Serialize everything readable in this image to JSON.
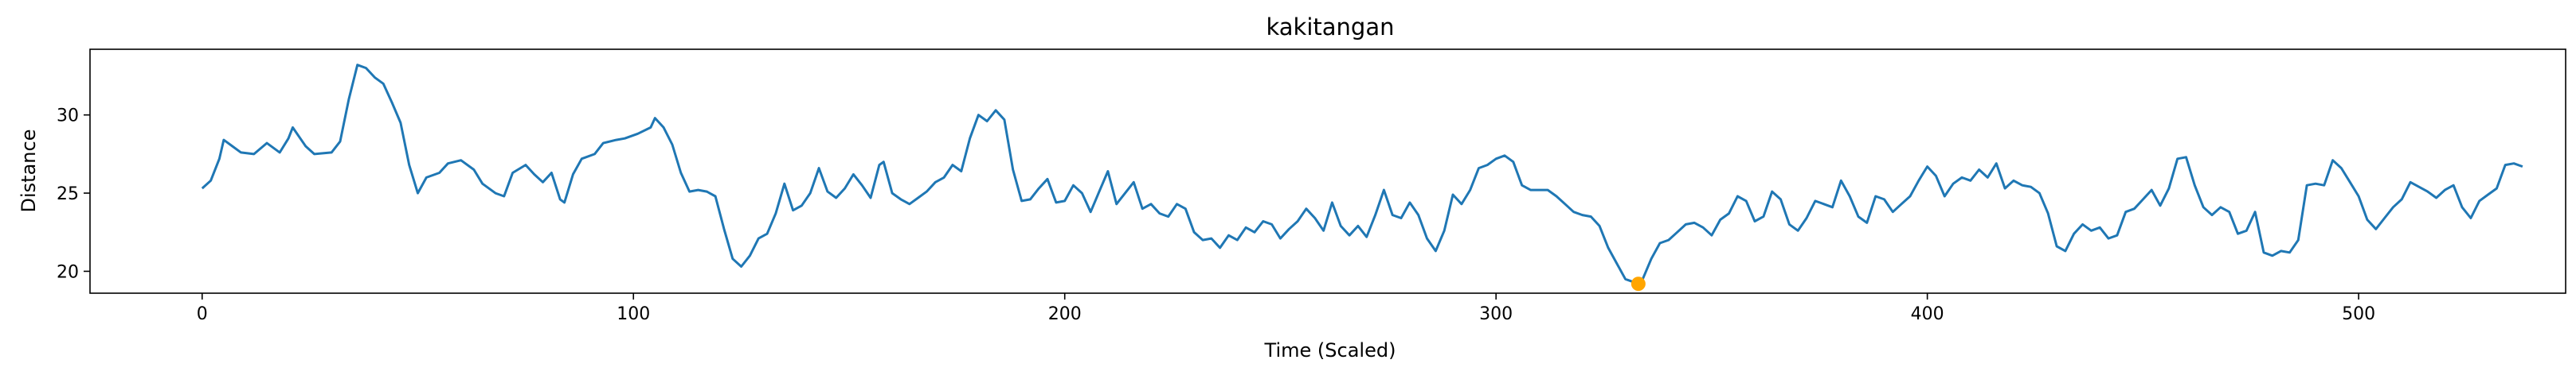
{
  "chart_data": {
    "type": "line",
    "title": "kakitangan",
    "xlabel": "Time (Scaled)",
    "ylabel": "Distance",
    "xlim": [
      -26,
      548
    ],
    "ylim": [
      18.6,
      34.2
    ],
    "xticks": [
      0,
      100,
      200,
      300,
      400,
      500
    ],
    "yticks": [
      20,
      25,
      30
    ],
    "grid": false,
    "colors": {
      "line": "#1f77b4",
      "marker": "#ffa500"
    },
    "series": [
      {
        "points": [
          [
            0,
            25.3
          ],
          [
            2,
            25.8
          ],
          [
            4,
            27.2
          ],
          [
            5,
            28.4
          ],
          [
            7,
            28.0
          ],
          [
            9,
            27.6
          ],
          [
            12,
            27.5
          ],
          [
            15,
            28.2
          ],
          [
            18,
            27.6
          ],
          [
            20,
            28.5
          ],
          [
            21,
            29.2
          ],
          [
            24,
            28.0
          ],
          [
            26,
            27.5
          ],
          [
            30,
            27.6
          ],
          [
            32,
            28.3
          ],
          [
            34,
            31.0
          ],
          [
            36,
            33.2
          ],
          [
            38,
            33.0
          ],
          [
            40,
            32.4
          ],
          [
            42,
            32.0
          ],
          [
            44,
            30.8
          ],
          [
            46,
            29.5
          ],
          [
            48,
            26.8
          ],
          [
            50,
            25.0
          ],
          [
            52,
            26.0
          ],
          [
            55,
            26.3
          ],
          [
            57,
            26.9
          ],
          [
            60,
            27.1
          ],
          [
            63,
            26.5
          ],
          [
            65,
            25.6
          ],
          [
            68,
            25.0
          ],
          [
            70,
            24.8
          ],
          [
            72,
            26.3
          ],
          [
            75,
            26.8
          ],
          [
            77,
            26.2
          ],
          [
            79,
            25.7
          ],
          [
            81,
            26.3
          ],
          [
            83,
            24.6
          ],
          [
            84,
            24.4
          ],
          [
            86,
            26.2
          ],
          [
            88,
            27.2
          ],
          [
            91,
            27.5
          ],
          [
            93,
            28.2
          ],
          [
            96,
            28.4
          ],
          [
            98,
            28.5
          ],
          [
            101,
            28.8
          ],
          [
            104,
            29.2
          ],
          [
            105,
            29.8
          ],
          [
            107,
            29.2
          ],
          [
            109,
            28.1
          ],
          [
            111,
            26.3
          ],
          [
            113,
            25.1
          ],
          [
            115,
            25.2
          ],
          [
            117,
            25.1
          ],
          [
            119,
            24.8
          ],
          [
            121,
            22.7
          ],
          [
            123,
            20.8
          ],
          [
            125,
            20.3
          ],
          [
            127,
            21.0
          ],
          [
            129,
            22.1
          ],
          [
            131,
            22.4
          ],
          [
            133,
            23.7
          ],
          [
            135,
            25.6
          ],
          [
            137,
            23.9
          ],
          [
            139,
            24.2
          ],
          [
            141,
            25.0
          ],
          [
            143,
            26.6
          ],
          [
            145,
            25.1
          ],
          [
            147,
            24.7
          ],
          [
            149,
            25.3
          ],
          [
            151,
            26.2
          ],
          [
            153,
            25.5
          ],
          [
            155,
            24.7
          ],
          [
            157,
            26.8
          ],
          [
            158,
            27.0
          ],
          [
            160,
            25.0
          ],
          [
            162,
            24.6
          ],
          [
            164,
            24.3
          ],
          [
            166,
            24.7
          ],
          [
            168,
            25.1
          ],
          [
            170,
            25.7
          ],
          [
            172,
            26.0
          ],
          [
            174,
            26.8
          ],
          [
            176,
            26.4
          ],
          [
            178,
            28.5
          ],
          [
            180,
            30.0
          ],
          [
            182,
            29.6
          ],
          [
            184,
            30.3
          ],
          [
            186,
            29.7
          ],
          [
            188,
            26.5
          ],
          [
            190,
            24.5
          ],
          [
            192,
            24.6
          ],
          [
            194,
            25.3
          ],
          [
            196,
            25.9
          ],
          [
            198,
            24.4
          ],
          [
            200,
            24.5
          ],
          [
            202,
            25.5
          ],
          [
            204,
            25.0
          ],
          [
            206,
            23.8
          ],
          [
            208,
            25.1
          ],
          [
            210,
            26.4
          ],
          [
            212,
            24.3
          ],
          [
            214,
            25.0
          ],
          [
            216,
            25.7
          ],
          [
            218,
            24.0
          ],
          [
            220,
            24.3
          ],
          [
            222,
            23.7
          ],
          [
            224,
            23.5
          ],
          [
            226,
            24.3
          ],
          [
            228,
            24.0
          ],
          [
            230,
            22.5
          ],
          [
            232,
            22.0
          ],
          [
            234,
            22.1
          ],
          [
            236,
            21.5
          ],
          [
            238,
            22.3
          ],
          [
            240,
            22.0
          ],
          [
            242,
            22.8
          ],
          [
            244,
            22.5
          ],
          [
            246,
            23.2
          ],
          [
            248,
            23.0
          ],
          [
            250,
            22.1
          ],
          [
            252,
            22.7
          ],
          [
            254,
            23.2
          ],
          [
            256,
            24.0
          ],
          [
            258,
            23.4
          ],
          [
            260,
            22.6
          ],
          [
            262,
            24.4
          ],
          [
            264,
            22.9
          ],
          [
            266,
            22.3
          ],
          [
            268,
            22.9
          ],
          [
            270,
            22.2
          ],
          [
            272,
            23.6
          ],
          [
            274,
            25.2
          ],
          [
            276,
            23.6
          ],
          [
            278,
            23.4
          ],
          [
            280,
            24.4
          ],
          [
            282,
            23.6
          ],
          [
            284,
            22.1
          ],
          [
            286,
            21.3
          ],
          [
            288,
            22.6
          ],
          [
            290,
            24.9
          ],
          [
            292,
            24.3
          ],
          [
            294,
            25.2
          ],
          [
            296,
            26.6
          ],
          [
            298,
            26.8
          ],
          [
            300,
            27.2
          ],
          [
            302,
            27.4
          ],
          [
            304,
            27.0
          ],
          [
            306,
            25.5
          ],
          [
            308,
            25.2
          ],
          [
            310,
            25.2
          ],
          [
            312,
            25.2
          ],
          [
            314,
            24.8
          ],
          [
            316,
            24.3
          ],
          [
            318,
            23.8
          ],
          [
            320,
            23.6
          ],
          [
            322,
            23.5
          ],
          [
            324,
            22.9
          ],
          [
            326,
            21.5
          ],
          [
            328,
            20.5
          ],
          [
            330,
            19.5
          ],
          [
            332,
            19.3
          ],
          [
            334,
            19.5
          ],
          [
            336,
            20.8
          ],
          [
            338,
            21.8
          ],
          [
            340,
            22.0
          ],
          [
            342,
            22.5
          ],
          [
            344,
            23.0
          ],
          [
            346,
            23.1
          ],
          [
            348,
            22.8
          ],
          [
            350,
            22.3
          ],
          [
            352,
            23.3
          ],
          [
            354,
            23.7
          ],
          [
            356,
            24.8
          ],
          [
            358,
            24.5
          ],
          [
            360,
            23.2
          ],
          [
            362,
            23.5
          ],
          [
            364,
            25.1
          ],
          [
            366,
            24.6
          ],
          [
            368,
            23.0
          ],
          [
            370,
            22.6
          ],
          [
            372,
            23.4
          ],
          [
            374,
            24.5
          ],
          [
            376,
            24.3
          ],
          [
            378,
            24.1
          ],
          [
            380,
            25.8
          ],
          [
            382,
            24.8
          ],
          [
            384,
            23.5
          ],
          [
            386,
            23.1
          ],
          [
            388,
            24.8
          ],
          [
            390,
            24.6
          ],
          [
            392,
            23.8
          ],
          [
            394,
            24.3
          ],
          [
            396,
            24.8
          ],
          [
            398,
            25.8
          ],
          [
            400,
            26.7
          ],
          [
            402,
            26.1
          ],
          [
            404,
            24.8
          ],
          [
            406,
            25.6
          ],
          [
            408,
            26.0
          ],
          [
            410,
            25.8
          ],
          [
            412,
            26.5
          ],
          [
            414,
            26.0
          ],
          [
            416,
            26.9
          ],
          [
            418,
            25.3
          ],
          [
            420,
            25.8
          ],
          [
            422,
            25.5
          ],
          [
            424,
            25.4
          ],
          [
            426,
            25.0
          ],
          [
            428,
            23.7
          ],
          [
            430,
            21.6
          ],
          [
            432,
            21.3
          ],
          [
            434,
            22.4
          ],
          [
            436,
            23.0
          ],
          [
            438,
            22.6
          ],
          [
            440,
            22.8
          ],
          [
            442,
            22.1
          ],
          [
            444,
            22.3
          ],
          [
            446,
            23.8
          ],
          [
            448,
            24.0
          ],
          [
            450,
            24.6
          ],
          [
            452,
            25.2
          ],
          [
            454,
            24.2
          ],
          [
            456,
            25.3
          ],
          [
            458,
            27.2
          ],
          [
            460,
            27.3
          ],
          [
            462,
            25.5
          ],
          [
            464,
            24.1
          ],
          [
            466,
            23.6
          ],
          [
            468,
            24.1
          ],
          [
            470,
            23.8
          ],
          [
            472,
            22.4
          ],
          [
            474,
            22.6
          ],
          [
            476,
            23.8
          ],
          [
            478,
            21.2
          ],
          [
            480,
            21.0
          ],
          [
            482,
            21.3
          ],
          [
            484,
            21.2
          ],
          [
            486,
            22.0
          ],
          [
            488,
            25.5
          ],
          [
            490,
            25.6
          ],
          [
            492,
            25.5
          ],
          [
            494,
            27.1
          ],
          [
            496,
            26.6
          ],
          [
            498,
            25.7
          ],
          [
            500,
            24.8
          ],
          [
            502,
            23.3
          ],
          [
            504,
            22.7
          ],
          [
            506,
            23.4
          ],
          [
            508,
            24.1
          ],
          [
            510,
            24.6
          ],
          [
            512,
            25.7
          ],
          [
            514,
            25.4
          ],
          [
            516,
            25.1
          ],
          [
            518,
            24.7
          ],
          [
            520,
            25.2
          ],
          [
            522,
            25.5
          ],
          [
            524,
            24.1
          ],
          [
            526,
            23.4
          ],
          [
            528,
            24.5
          ],
          [
            530,
            24.9
          ],
          [
            532,
            25.3
          ],
          [
            534,
            26.8
          ],
          [
            536,
            26.9
          ],
          [
            538,
            26.7
          ]
        ]
      }
    ],
    "highlight_point": {
      "x": 333,
      "y": 19.2
    }
  }
}
